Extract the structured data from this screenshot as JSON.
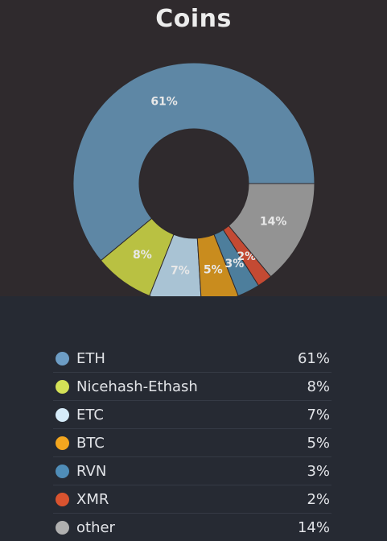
{
  "title": "Coins",
  "colors": {
    "hole": "#2f2a2d"
  },
  "chart_data": {
    "type": "pie",
    "donut": true,
    "title": "Coins",
    "categories": [
      "ETH",
      "Nicehash-Ethash",
      "ETC",
      "BTC",
      "RVN",
      "XMR",
      "other"
    ],
    "values": [
      61,
      8,
      7,
      5,
      3,
      2,
      14
    ],
    "labels": [
      "61%",
      "8%",
      "7%",
      "5%",
      "3%",
      "2%",
      "14%"
    ],
    "colors": [
      "#5e87a5",
      "#b9c142",
      "#a9c3d4",
      "#c98c1e",
      "#4d7e9c",
      "#c44a33",
      "#939393"
    ],
    "legend_position": "bottom"
  },
  "legend": [
    {
      "name": "ETH",
      "value": "61%",
      "color": "#6d9dc5"
    },
    {
      "name": "Nicehash-Ethash",
      "value": "8%",
      "color": "#d4e157"
    },
    {
      "name": "ETC",
      "value": "7%",
      "color": "#d6ecfa"
    },
    {
      "name": "BTC",
      "value": "5%",
      "color": "#f3a61f"
    },
    {
      "name": "RVN",
      "value": "3%",
      "color": "#4f8db8"
    },
    {
      "name": "XMR",
      "value": "2%",
      "color": "#d9532f"
    },
    {
      "name": "other",
      "value": "14%",
      "color": "#b0b0b0"
    }
  ]
}
